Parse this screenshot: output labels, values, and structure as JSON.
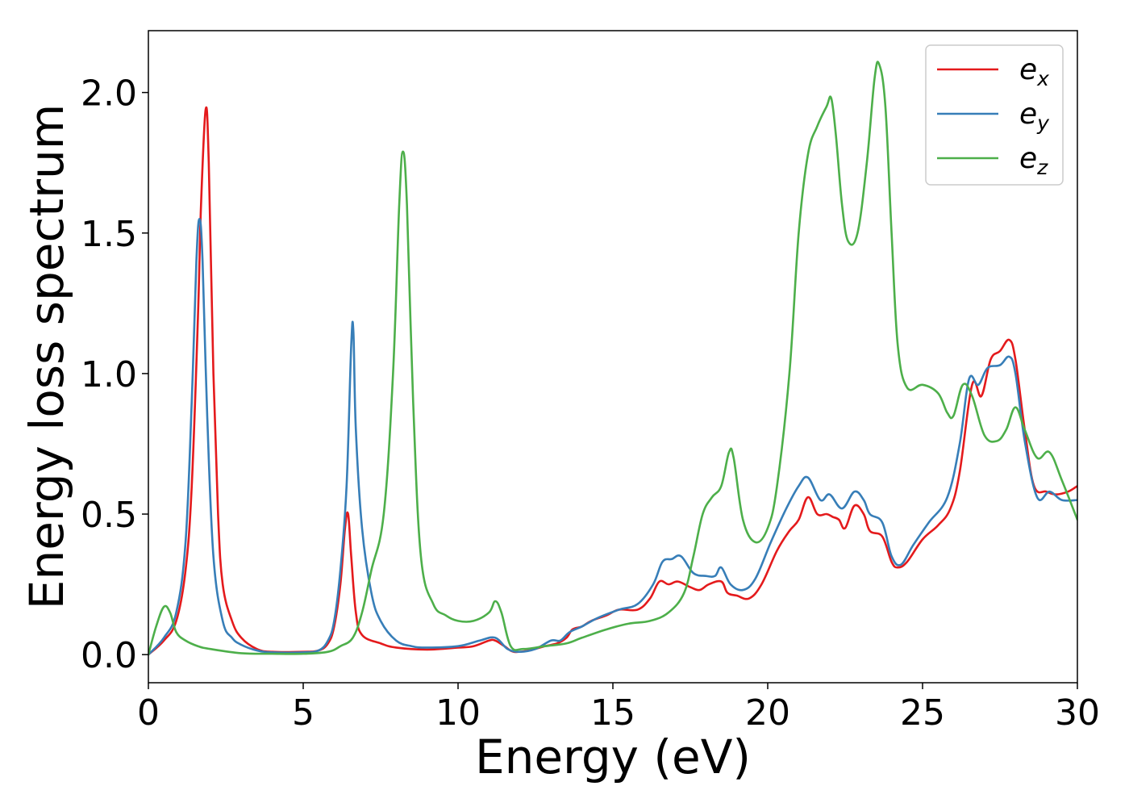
{
  "chart_data": {
    "type": "line",
    "title": "",
    "xlabel": "Energy (eV)",
    "ylabel": "Energy loss spectrum",
    "xlim": [
      0,
      30
    ],
    "ylim": [
      -0.1,
      2.22
    ],
    "grid": false,
    "legend_position": "top-right",
    "x_ticks": [
      0,
      5,
      10,
      15,
      20,
      25,
      30
    ],
    "x_tick_labels": [
      "0",
      "5",
      "10",
      "15",
      "20",
      "25",
      "30"
    ],
    "y_ticks": [
      0.0,
      0.5,
      1.0,
      1.5,
      2.0
    ],
    "y_tick_labels": [
      "0.0",
      "0.5",
      "1.0",
      "1.5",
      "2.0"
    ],
    "series": [
      {
        "name": "e",
        "subscript": "x",
        "color": "#e41a1c",
        "points": [
          [
            0,
            0
          ],
          [
            0.5,
            0.05
          ],
          [
            0.9,
            0.12
          ],
          [
            1.2,
            0.3
          ],
          [
            1.4,
            0.6
          ],
          [
            1.6,
            1.2
          ],
          [
            1.7,
            1.6
          ],
          [
            1.85,
            1.94
          ],
          [
            1.95,
            1.75
          ],
          [
            2.1,
            1.0
          ],
          [
            2.25,
            0.5
          ],
          [
            2.4,
            0.25
          ],
          [
            2.7,
            0.12
          ],
          [
            3,
            0.06
          ],
          [
            3.5,
            0.02
          ],
          [
            4,
            0.01
          ],
          [
            5,
            0.01
          ],
          [
            5.5,
            0.015
          ],
          [
            5.8,
            0.04
          ],
          [
            6.0,
            0.1
          ],
          [
            6.2,
            0.25
          ],
          [
            6.35,
            0.45
          ],
          [
            6.45,
            0.5
          ],
          [
            6.55,
            0.35
          ],
          [
            6.7,
            0.15
          ],
          [
            6.9,
            0.07
          ],
          [
            7.5,
            0.04
          ],
          [
            8,
            0.025
          ],
          [
            9,
            0.018
          ],
          [
            10,
            0.025
          ],
          [
            10.5,
            0.03
          ],
          [
            11,
            0.05
          ],
          [
            11.2,
            0.05
          ],
          [
            11.5,
            0.03
          ],
          [
            11.8,
            0.01
          ],
          [
            12.3,
            0.015
          ],
          [
            12.8,
            0.03
          ],
          [
            13.2,
            0.04
          ],
          [
            13.5,
            0.06
          ],
          [
            13.7,
            0.09
          ],
          [
            14,
            0.1
          ],
          [
            14.3,
            0.12
          ],
          [
            14.8,
            0.14
          ],
          [
            15.2,
            0.16
          ],
          [
            15.8,
            0.16
          ],
          [
            16.2,
            0.2
          ],
          [
            16.5,
            0.26
          ],
          [
            16.8,
            0.25
          ],
          [
            17.1,
            0.26
          ],
          [
            17.5,
            0.24
          ],
          [
            17.8,
            0.23
          ],
          [
            18.1,
            0.25
          ],
          [
            18.5,
            0.26
          ],
          [
            18.7,
            0.22
          ],
          [
            19,
            0.21
          ],
          [
            19.4,
            0.2
          ],
          [
            19.8,
            0.25
          ],
          [
            20.3,
            0.37
          ],
          [
            20.7,
            0.44
          ],
          [
            21.0,
            0.48
          ],
          [
            21.3,
            0.56
          ],
          [
            21.6,
            0.5
          ],
          [
            21.9,
            0.5
          ],
          [
            22.1,
            0.49
          ],
          [
            22.3,
            0.48
          ],
          [
            22.5,
            0.45
          ],
          [
            22.8,
            0.53
          ],
          [
            23.1,
            0.5
          ],
          [
            23.3,
            0.44
          ],
          [
            23.7,
            0.42
          ],
          [
            24.0,
            0.33
          ],
          [
            24.2,
            0.31
          ],
          [
            24.5,
            0.33
          ],
          [
            25.0,
            0.41
          ],
          [
            25.5,
            0.46
          ],
          [
            25.9,
            0.52
          ],
          [
            26.2,
            0.65
          ],
          [
            26.6,
            0.96
          ],
          [
            26.9,
            0.92
          ],
          [
            27.2,
            1.05
          ],
          [
            27.5,
            1.08
          ],
          [
            27.8,
            1.12
          ],
          [
            28.0,
            1.05
          ],
          [
            28.3,
            0.8
          ],
          [
            28.6,
            0.6
          ],
          [
            29.0,
            0.58
          ],
          [
            29.3,
            0.57
          ],
          [
            29.7,
            0.58
          ],
          [
            30.0,
            0.6
          ]
        ]
      },
      {
        "name": "e",
        "subscript": "y",
        "color": "#377eb8",
        "points": [
          [
            0,
            0
          ],
          [
            0.5,
            0.06
          ],
          [
            0.9,
            0.15
          ],
          [
            1.2,
            0.4
          ],
          [
            1.4,
            0.9
          ],
          [
            1.55,
            1.4
          ],
          [
            1.65,
            1.55
          ],
          [
            1.75,
            1.4
          ],
          [
            1.9,
            0.85
          ],
          [
            2.1,
            0.35
          ],
          [
            2.4,
            0.12
          ],
          [
            2.7,
            0.06
          ],
          [
            3,
            0.035
          ],
          [
            3.5,
            0.015
          ],
          [
            4,
            0.008
          ],
          [
            5,
            0.008
          ],
          [
            5.5,
            0.015
          ],
          [
            5.8,
            0.05
          ],
          [
            6.0,
            0.12
          ],
          [
            6.2,
            0.3
          ],
          [
            6.4,
            0.6
          ],
          [
            6.55,
            1.1
          ],
          [
            6.62,
            1.15
          ],
          [
            6.7,
            0.8
          ],
          [
            6.9,
            0.45
          ],
          [
            7.2,
            0.22
          ],
          [
            7.5,
            0.12
          ],
          [
            8,
            0.05
          ],
          [
            8.5,
            0.03
          ],
          [
            9,
            0.025
          ],
          [
            10,
            0.03
          ],
          [
            10.7,
            0.05
          ],
          [
            11.2,
            0.06
          ],
          [
            11.6,
            0.02
          ],
          [
            12,
            0.01
          ],
          [
            12.5,
            0.02
          ],
          [
            13.0,
            0.05
          ],
          [
            13.3,
            0.05
          ],
          [
            13.6,
            0.08
          ],
          [
            14,
            0.1
          ],
          [
            14.5,
            0.13
          ],
          [
            15.2,
            0.16
          ],
          [
            15.8,
            0.18
          ],
          [
            16.3,
            0.25
          ],
          [
            16.6,
            0.33
          ],
          [
            16.9,
            0.34
          ],
          [
            17.2,
            0.35
          ],
          [
            17.6,
            0.29
          ],
          [
            18.0,
            0.28
          ],
          [
            18.3,
            0.28
          ],
          [
            18.5,
            0.31
          ],
          [
            18.8,
            0.25
          ],
          [
            19.2,
            0.23
          ],
          [
            19.6,
            0.27
          ],
          [
            20.1,
            0.4
          ],
          [
            20.6,
            0.52
          ],
          [
            21.0,
            0.6
          ],
          [
            21.3,
            0.63
          ],
          [
            21.7,
            0.55
          ],
          [
            22.0,
            0.57
          ],
          [
            22.4,
            0.52
          ],
          [
            22.8,
            0.58
          ],
          [
            23.1,
            0.55
          ],
          [
            23.3,
            0.5
          ],
          [
            23.7,
            0.47
          ],
          [
            24.0,
            0.35
          ],
          [
            24.3,
            0.32
          ],
          [
            24.7,
            0.39
          ],
          [
            25.2,
            0.47
          ],
          [
            25.8,
            0.56
          ],
          [
            26.2,
            0.75
          ],
          [
            26.5,
            0.98
          ],
          [
            26.8,
            0.96
          ],
          [
            27.1,
            1.02
          ],
          [
            27.5,
            1.03
          ],
          [
            27.8,
            1.06
          ],
          [
            28.0,
            1.0
          ],
          [
            28.3,
            0.76
          ],
          [
            28.7,
            0.56
          ],
          [
            29.1,
            0.58
          ],
          [
            29.5,
            0.55
          ],
          [
            30.0,
            0.55
          ]
        ]
      },
      {
        "name": "e",
        "subscript": "z",
        "color": "#4daf4a",
        "points": [
          [
            0,
            0
          ],
          [
            0.25,
            0.1
          ],
          [
            0.5,
            0.17
          ],
          [
            0.7,
            0.15
          ],
          [
            0.9,
            0.08
          ],
          [
            1.2,
            0.05
          ],
          [
            1.6,
            0.03
          ],
          [
            2,
            0.02
          ],
          [
            3,
            0.005
          ],
          [
            4,
            0.003
          ],
          [
            5,
            0.003
          ],
          [
            5.8,
            0.01
          ],
          [
            6.2,
            0.03
          ],
          [
            6.6,
            0.06
          ],
          [
            6.9,
            0.15
          ],
          [
            7.2,
            0.3
          ],
          [
            7.6,
            0.5
          ],
          [
            7.9,
            1.0
          ],
          [
            8.1,
            1.6
          ],
          [
            8.22,
            1.79
          ],
          [
            8.35,
            1.6
          ],
          [
            8.55,
            0.9
          ],
          [
            8.8,
            0.35
          ],
          [
            9.2,
            0.18
          ],
          [
            9.6,
            0.14
          ],
          [
            10.0,
            0.12
          ],
          [
            10.5,
            0.12
          ],
          [
            11.0,
            0.15
          ],
          [
            11.2,
            0.19
          ],
          [
            11.4,
            0.15
          ],
          [
            11.7,
            0.03
          ],
          [
            12.1,
            0.02
          ],
          [
            12.8,
            0.03
          ],
          [
            13.5,
            0.04
          ],
          [
            14,
            0.06
          ],
          [
            14.8,
            0.09
          ],
          [
            15.5,
            0.11
          ],
          [
            16.2,
            0.12
          ],
          [
            16.8,
            0.15
          ],
          [
            17.3,
            0.22
          ],
          [
            17.6,
            0.35
          ],
          [
            17.9,
            0.5
          ],
          [
            18.2,
            0.56
          ],
          [
            18.5,
            0.6
          ],
          [
            18.75,
            0.72
          ],
          [
            18.9,
            0.7
          ],
          [
            19.2,
            0.48
          ],
          [
            19.6,
            0.4
          ],
          [
            20.0,
            0.45
          ],
          [
            20.3,
            0.6
          ],
          [
            20.7,
            1.0
          ],
          [
            21.0,
            1.5
          ],
          [
            21.3,
            1.78
          ],
          [
            21.6,
            1.88
          ],
          [
            21.9,
            1.95
          ],
          [
            22.05,
            1.98
          ],
          [
            22.2,
            1.85
          ],
          [
            22.4,
            1.6
          ],
          [
            22.6,
            1.47
          ],
          [
            22.9,
            1.5
          ],
          [
            23.2,
            1.75
          ],
          [
            23.45,
            2.05
          ],
          [
            23.6,
            2.1
          ],
          [
            23.8,
            1.95
          ],
          [
            24.0,
            1.5
          ],
          [
            24.2,
            1.1
          ],
          [
            24.5,
            0.95
          ],
          [
            25.0,
            0.96
          ],
          [
            25.5,
            0.93
          ],
          [
            25.8,
            0.86
          ],
          [
            26.0,
            0.85
          ],
          [
            26.3,
            0.96
          ],
          [
            26.6,
            0.92
          ],
          [
            27.0,
            0.78
          ],
          [
            27.4,
            0.76
          ],
          [
            27.7,
            0.8
          ],
          [
            28.0,
            0.88
          ],
          [
            28.3,
            0.8
          ],
          [
            28.7,
            0.7
          ],
          [
            29.1,
            0.72
          ],
          [
            29.5,
            0.62
          ],
          [
            30.0,
            0.48
          ]
        ]
      }
    ]
  }
}
